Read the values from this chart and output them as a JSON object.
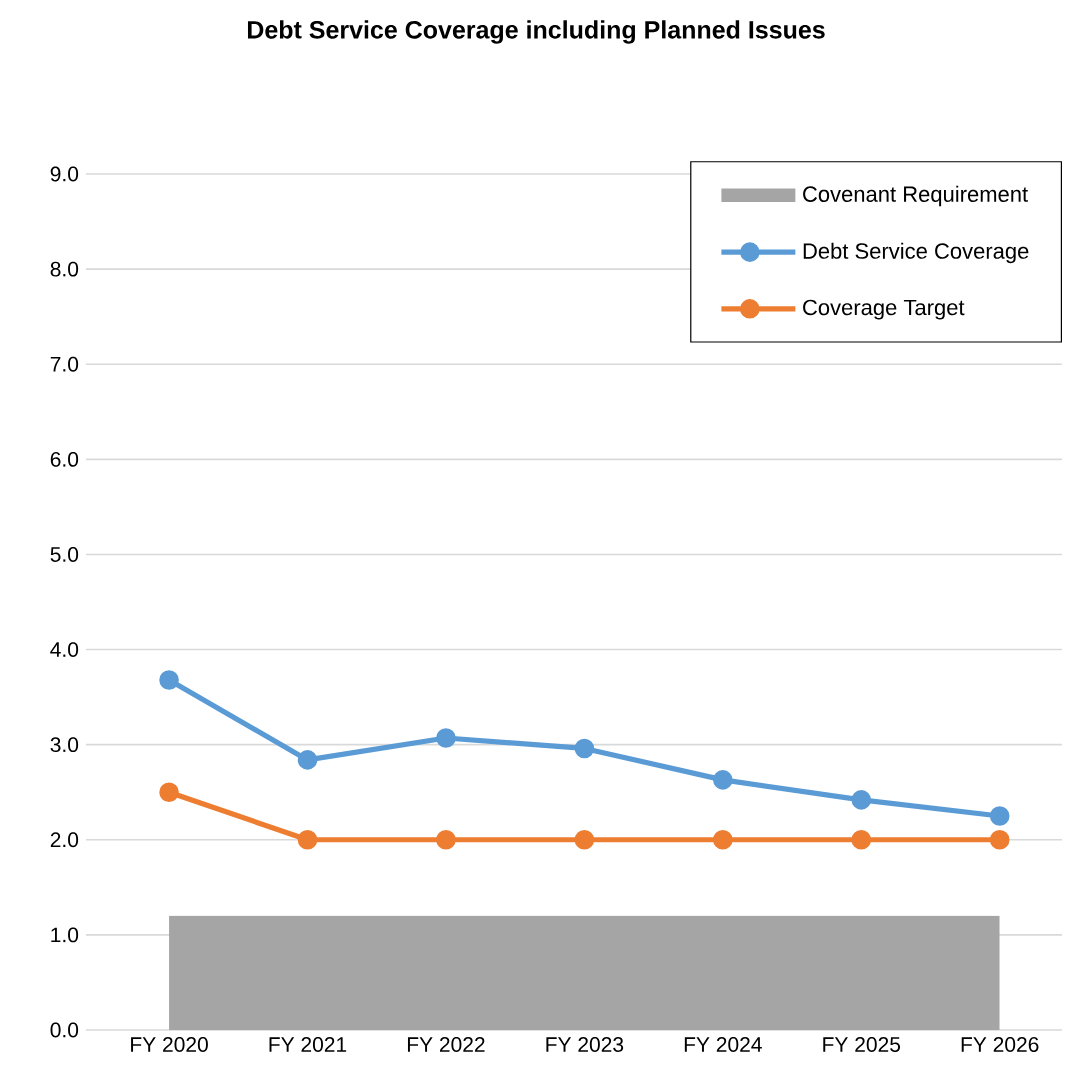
{
  "chart_data": {
    "type": "line",
    "title": "Debt Service Coverage including Planned Issues",
    "categories": [
      "FY 2020",
      "FY 2021",
      "FY 2022",
      "FY 2023",
      "FY 2024",
      "FY 2025",
      "FY 2026"
    ],
    "series": [
      {
        "name": "Covenant Requirement",
        "type": "area",
        "color": "#a5a5a5",
        "values": [
          1.2,
          1.2,
          1.2,
          1.2,
          1.2,
          1.2,
          1.2
        ]
      },
      {
        "name": "Debt Service Coverage",
        "color": "#5b9bd5",
        "marker": "circle",
        "values": [
          3.68,
          2.84,
          3.07,
          2.96,
          2.63,
          2.42,
          2.25
        ]
      },
      {
        "name": "Coverage Target",
        "color": "#ed7d31",
        "marker": "circle",
        "values": [
          2.5,
          2.0,
          2.0,
          2.0,
          2.0,
          2.0,
          2.0
        ]
      }
    ],
    "ylim": [
      0,
      9
    ],
    "yticks": [
      {
        "value": 0,
        "label": "0.0"
      },
      {
        "value": 1,
        "label": "1.0"
      },
      {
        "value": 2,
        "label": "2.0"
      },
      {
        "value": 3,
        "label": "3.0"
      },
      {
        "value": 4,
        "label": "4.0"
      },
      {
        "value": 5,
        "label": "5.0"
      },
      {
        "value": 6,
        "label": "6.0"
      },
      {
        "value": 7,
        "label": "7.0"
      },
      {
        "value": 8,
        "label": "8.0"
      },
      {
        "value": 9,
        "label": "9.0"
      }
    ],
    "grid": "y",
    "legend": "top right"
  }
}
